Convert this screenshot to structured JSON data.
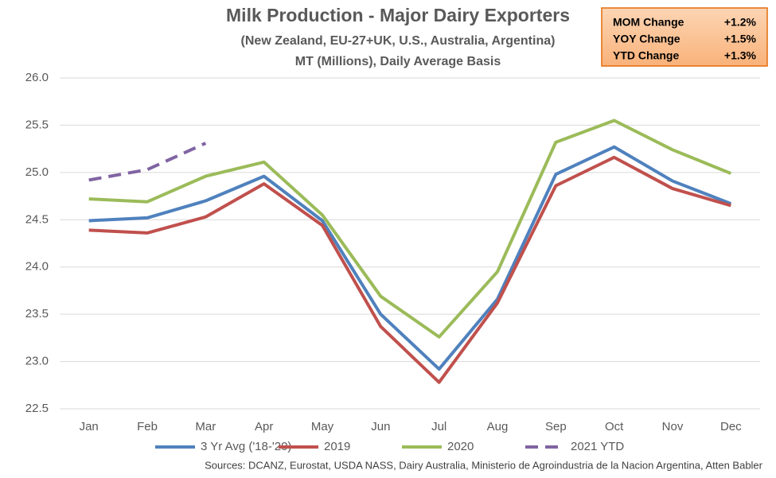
{
  "chart_data": {
    "type": "line",
    "title": "Milk Production - Major Dairy Exporters",
    "subtitle": "(New Zealand, EU-27+UK, U.S., Australia, Argentina)",
    "y_label": "MT (Millions), Daily Average Basis",
    "source": "Sources: DCANZ, Eurostat, USDA NASS, Dairy Australia, Ministerio de Agroindustria de la Nacion Argentina, Atten Babler",
    "annotations": [
      {
        "label": "MOM Change",
        "value": "+1.2%"
      },
      {
        "label": "YOY Change",
        "value": "+1.5%"
      },
      {
        "label": "YTD Change",
        "value": "+1.3%"
      }
    ],
    "categories": [
      "Jan",
      "Feb",
      "Mar",
      "Apr",
      "May",
      "Jun",
      "Jul",
      "Aug",
      "Sep",
      "Oct",
      "Nov",
      "Dec"
    ],
    "series": [
      {
        "name": "3 Yr Avg ('18-'20)",
        "color": "#4f81bd",
        "values": [
          24.49,
          24.52,
          24.7,
          24.96,
          24.49,
          23.5,
          22.92,
          23.66,
          24.98,
          25.27,
          24.91,
          24.67
        ]
      },
      {
        "name": "2019",
        "color": "#c0504d",
        "values": [
          24.39,
          24.36,
          24.53,
          24.88,
          24.44,
          23.37,
          22.78,
          23.62,
          24.86,
          25.16,
          24.83,
          24.65
        ]
      },
      {
        "name": "2020",
        "color": "#9bbb59",
        "values": [
          24.72,
          24.69,
          24.96,
          25.11,
          24.55,
          23.69,
          23.26,
          23.95,
          25.32,
          25.55,
          25.24,
          24.99
        ]
      },
      {
        "name": "2021 YTD",
        "color": "#8064a2",
        "dashed": true,
        "values": [
          24.92,
          25.03,
          25.31,
          null,
          null,
          null,
          null,
          null,
          null,
          null,
          null,
          null
        ]
      }
    ],
    "ylim": [
      22.5,
      26.0
    ],
    "yticks": [
      22.5,
      {
        "value": 23,
        "label": "23.0"
      },
      23.5,
      {
        "value": 24,
        "label": "24.0"
      },
      24.5,
      {
        "value": 25,
        "label": "25.0"
      },
      25.5,
      {
        "value": 26,
        "label": "26.0"
      }
    ],
    "grid": true,
    "legend": "bottom"
  }
}
